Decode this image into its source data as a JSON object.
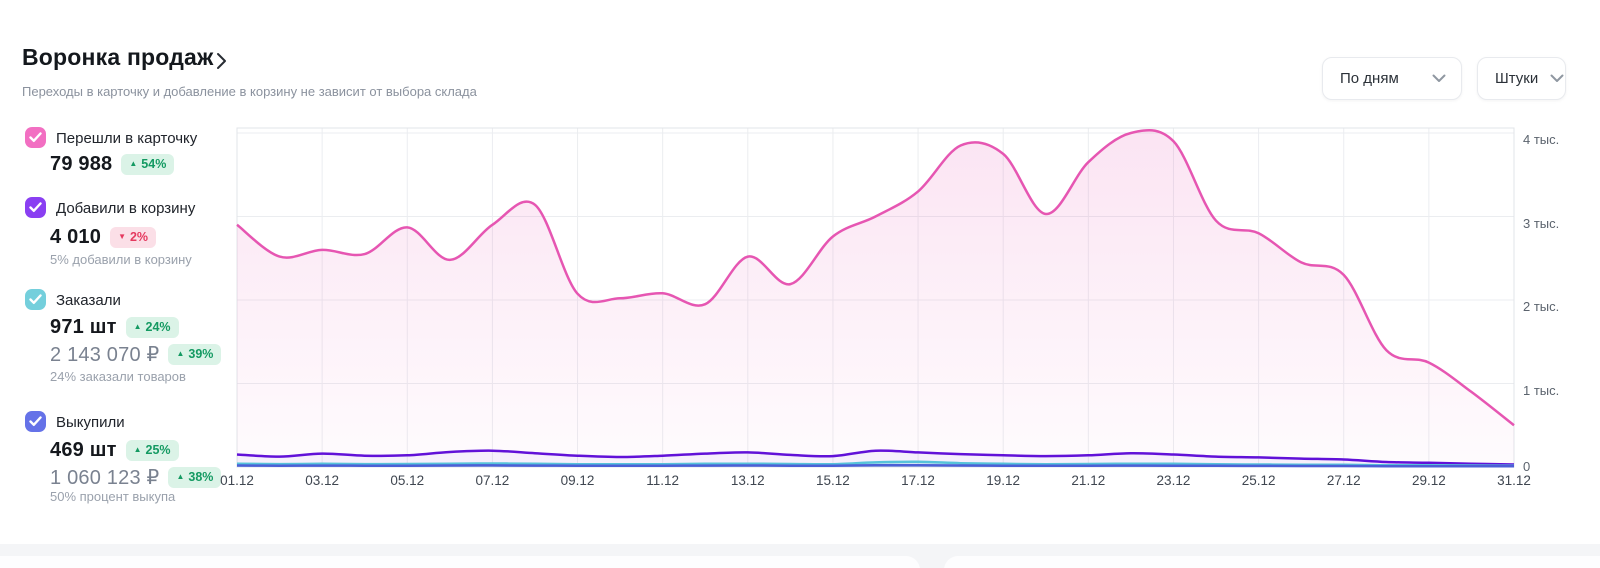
{
  "header": {
    "title": "Воронка продаж",
    "subtitle": "Переходы в карточку и добавление в корзину не зависит от выбора склада",
    "period_dropdown": "По дням",
    "units_dropdown": "Штуки"
  },
  "metrics": [
    {
      "label": "Перешли в карточку",
      "color": "#f26fc2",
      "value": "79 988",
      "delta_arrow": "▲",
      "delta": "54%"
    },
    {
      "label": "Добавили в корзину",
      "color": "#8a3ff2",
      "value": "4 010",
      "delta_arrow": "▼",
      "delta": "2%",
      "subtext": "5% добавили в корзину"
    },
    {
      "label": "Заказали",
      "color": "#74cfdc",
      "value": "971 шт",
      "delta_arrow": "▲",
      "delta": "24%",
      "value2": "2 143 070 ₽",
      "delta2_arrow": "▲",
      "delta2": "39%",
      "subtext": "24% заказали товаров"
    },
    {
      "label": "Выкупили",
      "color": "#6572e8",
      "value": "469 шт",
      "delta_arrow": "▲",
      "delta": "25%",
      "value2": "1 060 123 ₽",
      "delta2_arrow": "▲",
      "delta2": "38%",
      "subtext": "50% процент выкупа"
    }
  ],
  "chart_data": {
    "type": "area",
    "x_range": "01.12 – 31.12",
    "n_points": 31,
    "tick_every_days": 2,
    "x_tick_labels": [
      "01.12",
      "03.12",
      "05.12",
      "07.12",
      "09.12",
      "11.12",
      "13.12",
      "15.12",
      "17.12",
      "19.12",
      "21.12",
      "23.12",
      "25.12",
      "27.12",
      "29.12",
      "31.12"
    ],
    "y_ticks": [
      {
        "label": "0",
        "value": 0
      },
      {
        "label": "1 тыс.",
        "value": 1000
      },
      {
        "label": "2 тыс.",
        "value": 2000
      },
      {
        "label": "3 тыс.",
        "value": 3000
      },
      {
        "label": "4 тыс.",
        "value": 4000
      }
    ],
    "ylim": [
      0,
      4060
    ],
    "grid": true,
    "legend_position": "left-panel",
    "series": [
      {
        "name": "Перешли в карточку",
        "color": "#e656b2",
        "fill": "pink-gradient",
        "values": [
          2900,
          2520,
          2600,
          2550,
          2870,
          2480,
          2900,
          3140,
          2075,
          2020,
          2080,
          1950,
          2520,
          2190,
          2760,
          3000,
          3300,
          3850,
          3750,
          3030,
          3650,
          4000,
          3900,
          2950,
          2800,
          2450,
          2300,
          1400,
          1250,
          900,
          500
        ]
      },
      {
        "name": "Добавили в корзину",
        "color": "#6111d8",
        "fill": "violet-tint",
        "values": [
          150,
          125,
          160,
          135,
          140,
          180,
          195,
          165,
          135,
          120,
          135,
          160,
          175,
          145,
          130,
          195,
          175,
          155,
          140,
          130,
          140,
          165,
          150,
          125,
          115,
          100,
          90,
          60,
          50,
          40,
          30
        ]
      },
      {
        "name": "Заказали",
        "color": "#56c3da",
        "fill": "cyan-tint",
        "values": [
          40,
          35,
          38,
          35,
          36,
          40,
          42,
          38,
          34,
          32,
          34,
          38,
          40,
          36,
          34,
          55,
          62,
          45,
          38,
          34,
          36,
          40,
          38,
          32,
          30,
          28,
          26,
          22,
          20,
          18,
          15
        ]
      },
      {
        "name": "Выкупили",
        "color": "#4c5fd6",
        "fill": "none",
        "values": [
          18,
          16,
          17,
          16,
          16,
          18,
          19,
          17,
          15,
          14,
          15,
          17,
          18,
          16,
          15,
          20,
          22,
          18,
          16,
          15,
          15,
          17,
          16,
          14,
          13,
          12,
          12,
          10,
          9,
          8,
          8
        ]
      }
    ]
  }
}
